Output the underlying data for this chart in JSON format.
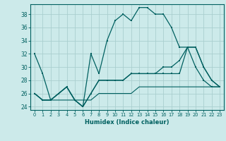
{
  "xlabel": "Humidex (Indice chaleur)",
  "bg_color": "#cceaea",
  "grid_color": "#aacfcf",
  "line_color": "#006060",
  "xlim": [
    -0.5,
    23.5
  ],
  "ylim": [
    23.5,
    39.5
  ],
  "yticks": [
    24,
    26,
    28,
    30,
    32,
    34,
    36,
    38
  ],
  "xticks": [
    0,
    1,
    2,
    3,
    4,
    5,
    6,
    7,
    8,
    9,
    10,
    11,
    12,
    13,
    14,
    15,
    16,
    17,
    18,
    19,
    20,
    21,
    22,
    23
  ],
  "series1": [
    32,
    29,
    25,
    26,
    27,
    25,
    24,
    32,
    29,
    34,
    37,
    38,
    37,
    39,
    39,
    38,
    38,
    36,
    33,
    33,
    30,
    28,
    27,
    27
  ],
  "series2": [
    26,
    25,
    25,
    26,
    27,
    25,
    24,
    26,
    28,
    28,
    28,
    28,
    29,
    29,
    29,
    29,
    29,
    29,
    29,
    33,
    33,
    30,
    28,
    27
  ],
  "series3": [
    26,
    25,
    25,
    26,
    27,
    25,
    24,
    26,
    28,
    28,
    28,
    28,
    29,
    29,
    29,
    29,
    30,
    30,
    31,
    33,
    33,
    30,
    28,
    27
  ],
  "series4": [
    26,
    25,
    25,
    25,
    25,
    25,
    25,
    25,
    26,
    26,
    26,
    26,
    26,
    27,
    27,
    27,
    27,
    27,
    27,
    27,
    27,
    27,
    27,
    27
  ]
}
